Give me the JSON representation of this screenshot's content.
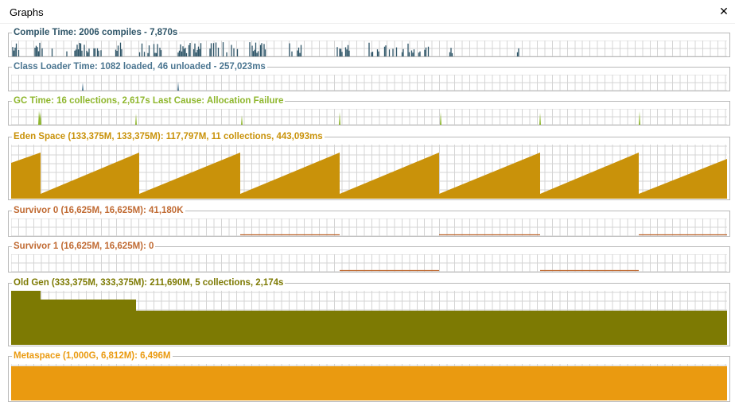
{
  "window": {
    "title": "Graphs",
    "close_glyph": "✕"
  },
  "colors": {
    "grid": "#d4d4d4",
    "compile": "#2e5568",
    "class_loader": "#4a7590",
    "gc": "#8fb72e",
    "eden": "#c9920a",
    "survivor": "#c06a32",
    "old_gen": "#7d7a03",
    "metaspace": "#ea9a10"
  },
  "graphs": [
    {
      "id": "compile",
      "label": "Compile Time: 2006 compiles - 7,870s",
      "label_color": "#2e5568"
    },
    {
      "id": "class_loader",
      "label": "Class Loader Time: 1082 loaded, 46 unloaded - 257,023ms",
      "label_color": "#4a7590"
    },
    {
      "id": "gc",
      "label": "GC Time: 16 collections, 2,617s  Last Cause: Allocation Failure",
      "label_color": "#8fb72e"
    },
    {
      "id": "eden",
      "label": "Eden Space (133,375M, 133,375M): 117,797M, 11 collections, 443,093ms",
      "label_color": "#c9920a"
    },
    {
      "id": "survivor0",
      "label": "Survivor 0 (16,625M, 16,625M): 41,180K",
      "label_color": "#c06a32"
    },
    {
      "id": "survivor1",
      "label": "Survivor 1 (16,625M, 16,625M): 0",
      "label_color": "#c06a32"
    },
    {
      "id": "old_gen",
      "label": "Old Gen (333,375M, 333,375M): 211,690M, 5 collections, 2,174s",
      "label_color": "#7d7a03"
    },
    {
      "id": "metaspace",
      "label": "Metaspace (1,000G, 6,812M): 6,496M",
      "label_color": "#ea9a10"
    }
  ]
}
